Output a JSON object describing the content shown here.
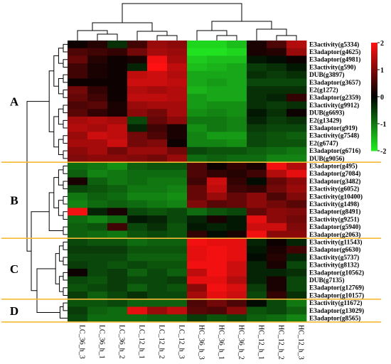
{
  "chart_data": {
    "type": "heatmap",
    "title": "",
    "columns": [
      "LC_36_h_3",
      "LC_36_h_1",
      "LC_36_h_2",
      "LC_12_h_1",
      "LC_12_h_2",
      "LC_12_h_3",
      "HC_36_h_3",
      "HC_36_h_1",
      "HC_36_h_2",
      "HC_12_h_1",
      "HC_12_h_2",
      "HC_12_h_3"
    ],
    "rows": [
      "E3activity(g5334)",
      "E3adaptor(g4625)",
      "E3adaptor(g4981)",
      "E3activity(g590)",
      "DUB(g3897)",
      "E3adaptor(g3657)",
      "E2(g1272)",
      "E3adaptor(g2359)",
      "E3activity(g9912)",
      "DUB(g6693)",
      "E2(g13429)",
      "E3adaptor(g919)",
      "E3activity(g7548)",
      "E2(g6747)",
      "E3adaptor(g6716)",
      "DUB(g9056)",
      "E3adaptor(g495)",
      "E3adaptor(g7084)",
      "E3adaptor(g3482)",
      "E3activity(g6052)",
      "E3activity(g10400)",
      "E3activity(g1498)",
      "E3adaptor(g8491)",
      "E3activity(g9251)",
      "E3adaptor(g5940)",
      "E3adaptor(g2063)",
      "E3activity(g11543)",
      "E3adaptor(g6630)",
      "E3activity(g5737)",
      "E3activity(g8132)",
      "E3adaptor(g10562)",
      "DUB(g7135)",
      "E3adaptor(g12769)",
      "E3adaptor(g10157)",
      "E3activity(g11672)",
      "E3adaptor(g13029)",
      "E3adaptor(g8565)"
    ],
    "values": [
      [
        0.1,
        0.3,
        -0.4,
        0.5,
        1.2,
        1.1,
        -1.8,
        -1.8,
        -1.6,
        0.2,
        0.6,
        1.4
      ],
      [
        0.6,
        0.5,
        0.4,
        0.9,
        1.3,
        1.2,
        -1.9,
        -1.9,
        -1.8,
        0.2,
        0.3,
        1.2
      ],
      [
        0.8,
        0.3,
        0.1,
        0.2,
        1.9,
        1.3,
        -1.7,
        -1.6,
        -1.6,
        -0.2,
        -0.1,
        0.1
      ],
      [
        0.5,
        0.2,
        0.1,
        -0.3,
        2.0,
        1.5,
        -1.6,
        -1.5,
        -1.4,
        -0.5,
        -0.4,
        -0.2
      ],
      [
        0.5,
        0.2,
        0.1,
        1.5,
        1.6,
        1.4,
        -1.4,
        -1.4,
        -1.4,
        -0.4,
        -0.5,
        -0.4
      ],
      [
        0.1,
        0.1,
        0.1,
        1.6,
        1.6,
        1.5,
        -1.4,
        -1.3,
        -1.4,
        -0.6,
        -0.6,
        -0.6
      ],
      [
        0.9,
        0.4,
        0.1,
        1.4,
        1.3,
        1.4,
        -1.5,
        -1.4,
        -1.4,
        -0.4,
        -0.4,
        -0.4
      ],
      [
        0.8,
        0.5,
        0.1,
        1.5,
        1.5,
        1.4,
        -1.3,
        -1.4,
        -1.4,
        -0.4,
        -0.3,
        0.4
      ],
      [
        0.6,
        0.7,
        0.2,
        1.2,
        1.3,
        1.3,
        -1.3,
        -1.2,
        -1.2,
        -0.4,
        -0.5,
        -0.4
      ],
      [
        0.7,
        0.4,
        0.2,
        1.1,
        0.9,
        1.3,
        -1.2,
        -1.1,
        -1.2,
        -0.2,
        -0.4,
        0.1
      ],
      [
        1.3,
        1.4,
        1.3,
        -0.6,
        0.8,
        1.1,
        -1.0,
        -1.0,
        -1.1,
        -0.3,
        -0.5,
        -0.4
      ],
      [
        1.4,
        1.3,
        1.5,
        -0.3,
        0.5,
        0.2,
        -1.2,
        -1.0,
        -1.1,
        -0.5,
        -0.6,
        -0.6
      ],
      [
        1.2,
        1.6,
        1.5,
        0.9,
        0.6,
        0.2,
        -1.1,
        -1.3,
        -1.3,
        -0.6,
        -0.7,
        -0.8
      ],
      [
        1.3,
        1.3,
        1.6,
        0.9,
        1.0,
        0.1,
        -1.1,
        -1.1,
        -1.2,
        -0.6,
        -0.7,
        -0.7
      ],
      [
        1.1,
        1.3,
        0.9,
        1.2,
        1.2,
        0.9,
        -0.6,
        -0.7,
        -0.7,
        -0.8,
        -0.9,
        -1.0
      ],
      [
        1.0,
        1.1,
        1.1,
        1.0,
        0.9,
        1.2,
        -0.9,
        -0.8,
        -0.9,
        -0.9,
        -1.1,
        -1.1
      ],
      [
        -0.9,
        -1.0,
        -1.2,
        -0.8,
        -0.7,
        -0.7,
        0.6,
        0.1,
        0.4,
        0.2,
        1.9,
        1.4
      ],
      [
        -0.8,
        -1.1,
        -1.0,
        -0.9,
        -0.9,
        -0.9,
        0.6,
        0.4,
        0.3,
        0.5,
        1.4,
        1.8
      ],
      [
        0.2,
        -0.8,
        -1.0,
        -0.9,
        -1.0,
        -1.0,
        0.5,
        1.6,
        0.4,
        -0.1,
        0.8,
        1.1
      ],
      [
        -0.6,
        -0.7,
        -0.8,
        -1.0,
        -1.0,
        -1.1,
        0.8,
        1.5,
        0.5,
        0.4,
        0.9,
        1.2
      ],
      [
        -1.0,
        -0.8,
        -0.9,
        -1.1,
        -1.1,
        -1.2,
        0.8,
        1.2,
        0.8,
        1.1,
        0.6,
        1.0
      ],
      [
        -1.1,
        -0.9,
        -0.8,
        -0.9,
        -1.0,
        -1.1,
        1.0,
        0.7,
        0.8,
        1.1,
        0.9,
        0.7
      ],
      [
        1.9,
        -0.3,
        0.2,
        -0.6,
        -0.7,
        -0.6,
        -0.9,
        -0.7,
        -0.6,
        0.8,
        1.1,
        1.0
      ],
      [
        -0.9,
        -1.1,
        -0.9,
        -0.2,
        -0.3,
        -0.6,
        -0.3,
        0.2,
        -0.2,
        1.8,
        1.1,
        0.9
      ],
      [
        -0.8,
        -0.7,
        0.5,
        -0.6,
        -0.4,
        -0.7,
        -0.2,
        -0.3,
        -0.2,
        1.6,
        1.6,
        1.0
      ],
      [
        -0.8,
        -0.9,
        -1.0,
        -0.7,
        -0.6,
        -0.7,
        0.4,
        -0.1,
        0.2,
        1.9,
        1.1,
        1.1
      ],
      [
        -0.6,
        -0.7,
        -0.7,
        -0.9,
        -0.8,
        -0.8,
        1.9,
        1.8,
        1.8,
        -0.3,
        0.1,
        -0.3
      ],
      [
        -0.5,
        -0.5,
        -0.5,
        -0.7,
        -0.7,
        -0.7,
        1.8,
        1.9,
        1.8,
        -0.2,
        0.2,
        0.5
      ],
      [
        -0.6,
        -0.6,
        -0.6,
        -0.8,
        -0.8,
        -0.8,
        1.8,
        1.9,
        1.8,
        -0.1,
        0.3,
        -0.3
      ],
      [
        -0.5,
        -0.6,
        -0.7,
        -0.6,
        -0.7,
        -0.7,
        1.9,
        1.9,
        1.6,
        -0.3,
        0.2,
        -0.6
      ],
      [
        0.1,
        -0.6,
        -0.5,
        -0.8,
        -0.6,
        -0.8,
        1.5,
        1.9,
        1.6,
        -0.3,
        -0.3,
        -0.4
      ],
      [
        -0.6,
        -0.7,
        -0.5,
        -0.6,
        -0.6,
        -0.5,
        1.8,
        1.8,
        1.4,
        -0.3,
        0.2,
        -0.6
      ],
      [
        -0.7,
        -0.6,
        -0.5,
        -0.8,
        -0.6,
        -0.7,
        1.1,
        1.9,
        1.7,
        -0.5,
        0.2,
        -0.6
      ],
      [
        -0.5,
        -0.8,
        -0.6,
        -0.4,
        -0.6,
        -0.6,
        1.3,
        1.8,
        1.6,
        -0.6,
        0.4,
        -0.4
      ],
      [
        -0.7,
        -0.7,
        -0.6,
        -0.8,
        -0.8,
        -0.8,
        0.6,
        0.9,
        0.6,
        -0.1,
        -0.6,
        -1.0
      ],
      [
        -0.5,
        -0.8,
        -0.9,
        1.8,
        1.2,
        1.5,
        0.7,
        0.6,
        1.1,
        -0.7,
        -0.6,
        -0.8
      ],
      [
        -0.6,
        -0.9,
        -0.9,
        -0.9,
        -0.8,
        -0.8,
        -0.5,
        -0.7,
        -0.6,
        -0.8,
        -0.9,
        -1.1
      ]
    ],
    "clusters": [
      {
        "label": "A",
        "start": 0,
        "end": 15
      },
      {
        "label": "B",
        "start": 16,
        "end": 25
      },
      {
        "label": "C",
        "start": 26,
        "end": 33
      },
      {
        "label": "D",
        "start": 34,
        "end": 36
      }
    ],
    "colorscale": {
      "min": -2,
      "max": 2,
      "low": "#22ee22",
      "mid": "#000000",
      "high": "#ff1111",
      "ticks": [
        "2",
        "1",
        "0",
        "-1",
        "-2"
      ]
    },
    "separator_color": "#f5b935",
    "grid": false,
    "legend": "top-right"
  }
}
